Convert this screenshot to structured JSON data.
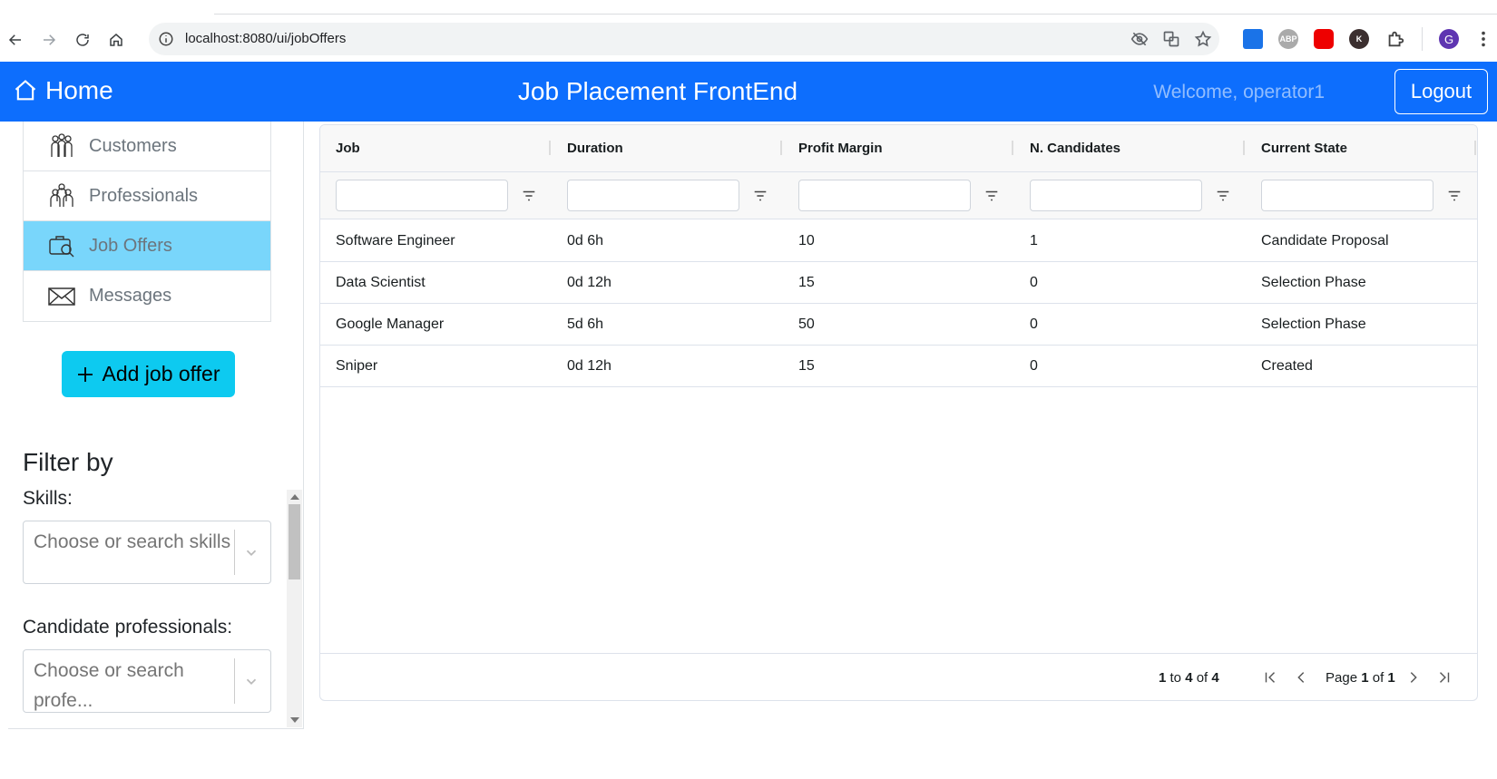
{
  "browser": {
    "url": "localhost:8080/ui/jobOffers",
    "profile_initial": "G",
    "extensions": [
      "eye-off-icon",
      "translate-icon",
      "star-icon",
      "screenshot-ext-icon",
      "abp-ext-icon",
      "youtube-ext-icon",
      "k-ext-icon",
      "puzzle-icon"
    ],
    "abp_label": "ABP",
    "k_label": "K"
  },
  "navbar": {
    "home_label": "Home",
    "title": "Job Placement FrontEnd",
    "welcome": "Welcome, operator1",
    "logout_label": "Logout",
    "color": "#0d6efd"
  },
  "sidebar": {
    "items": [
      {
        "label": "Customers",
        "icon": "customers-icon",
        "active": false
      },
      {
        "label": "Professionals",
        "icon": "professionals-icon",
        "active": false
      },
      {
        "label": "Job Offers",
        "icon": "job-offers-icon",
        "active": true
      },
      {
        "label": "Messages",
        "icon": "envelope-icon",
        "active": false
      }
    ],
    "add_button_label": "Add job offer",
    "add_button_color": "#0dcaf0",
    "active_color": "#79d6fb",
    "filter_title": "Filter by",
    "skills_label": "Skills:",
    "skills_placeholder": "Choose or search skills",
    "professionals_label": "Candidate professionals:",
    "professionals_placeholder": "Choose or search profe..."
  },
  "grid": {
    "columns": [
      "Job",
      "Duration",
      "Profit Margin",
      "N. Candidates",
      "Current State"
    ],
    "rows": [
      [
        "Software Engineer",
        "0d 6h",
        "10",
        "1",
        "Candidate Proposal"
      ],
      [
        "Data Scientist",
        "0d 12h",
        "15",
        "0",
        "Selection Phase"
      ],
      [
        "Google Manager",
        "5d 6h",
        "50",
        "0",
        "Selection Phase"
      ],
      [
        "Sniper",
        "0d 12h",
        "15",
        "0",
        "Created"
      ]
    ],
    "pagination": {
      "from": "1",
      "to_word": "to",
      "to": "4",
      "of_word": "of",
      "total": "4",
      "page_word": "Page",
      "page": "1",
      "pages": "1"
    }
  }
}
